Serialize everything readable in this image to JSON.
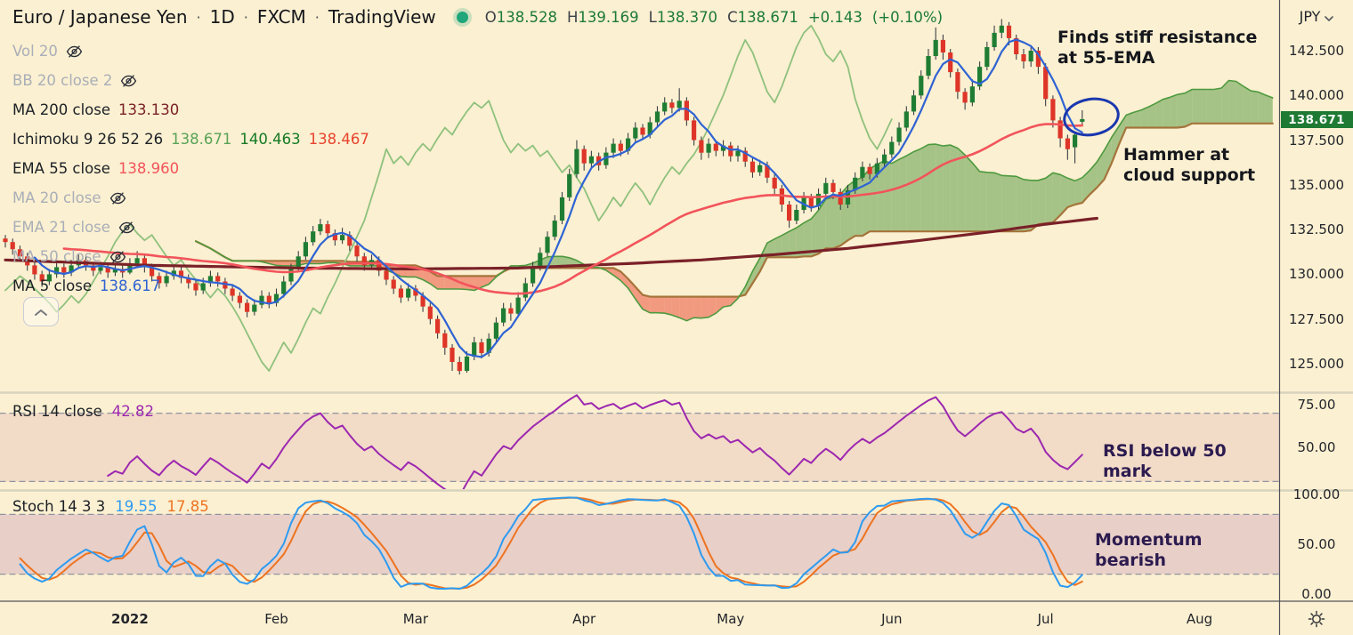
{
  "header": {
    "symbol": "Euro / Japanese Yen",
    "separator": "·",
    "interval": "1D",
    "exchange": "FXCM",
    "platform": "TradingView",
    "ohlc": {
      "o_label": "O",
      "o": "138.528",
      "h_label": "H",
      "h": "139.169",
      "l_label": "L",
      "l": "138.370",
      "c_label": "C",
      "c": "138.671",
      "change": "+0.143",
      "change_pct": "(+0.10%)"
    }
  },
  "legend": {
    "rows": [
      {
        "id": "vol",
        "label": "Vol 20",
        "disabled": true,
        "eye": true
      },
      {
        "id": "bb",
        "label": "BB 20 close 2",
        "disabled": true,
        "eye": true
      },
      {
        "id": "ma200",
        "label": "MA 200 close",
        "values": [
          {
            "text": "133.130",
            "color": "#7A2128"
          }
        ]
      },
      {
        "id": "ichimoku",
        "label": "Ichimoku 9 26 52 26",
        "values": [
          {
            "text": "138.671",
            "color": "#59A357"
          },
          {
            "text": "140.463",
            "color": "#157A24"
          },
          {
            "text": "138.467",
            "color": "#E8432E"
          }
        ]
      },
      {
        "id": "ema55",
        "label": "EMA 55 close",
        "values": [
          {
            "text": "138.960",
            "color": "#F2545B"
          }
        ]
      },
      {
        "id": "ma20",
        "label": "MA 20 close",
        "disabled": true,
        "eye": true
      },
      {
        "id": "ema21",
        "label": "EMA 21 close",
        "disabled": true,
        "eye": true
      },
      {
        "id": "ma50",
        "label": "MA 50 close",
        "disabled": true,
        "eye": true
      },
      {
        "id": "ma5",
        "label": "MA 5 close",
        "values": [
          {
            "text": "138.617",
            "color": "#2F63D4"
          }
        ]
      }
    ]
  },
  "panes": {
    "rsi": {
      "label": "RSI 14 close",
      "value": "42.82"
    },
    "stoch": {
      "label": "Stoch 14 3 3",
      "k_value": "19.55",
      "d_value": "17.85"
    }
  },
  "axis": {
    "currency": "JPY",
    "last_price_label": "138.671"
  },
  "annotations": {
    "resistance": {
      "line1": "Finds stiff resistance",
      "line2": "at 55-EMA"
    },
    "hammer": {
      "line1": "Hammer at",
      "line2": "cloud support"
    },
    "rsi": {
      "line1": "RSI below 50",
      "line2": "mark"
    },
    "momentum": {
      "line1": "Momentum",
      "line2": "bearish"
    }
  },
  "colors": {
    "background": "#FBF0D1",
    "candle_up": "#1F7D33",
    "candle_down": "#DE3528",
    "wick": "#3C3F46",
    "cloud_up": "rgba(96,158,74,0.55)",
    "cloud_down": "rgba(235,84,62,0.55)",
    "senkou_a": "#4E9A3F",
    "senkou_b": "#A5743B",
    "lagging": "#8FC17D",
    "ma5": "#2F63D4",
    "ema55": "#F2545B",
    "ma200": "#7A2128",
    "rsi": "#9C27B0",
    "rsi_band": "rgba(170,40,120,0.10)",
    "stoch_k": "#2E9BF0",
    "stoch_d": "#EE7320",
    "stoch_band": "rgba(150,60,160,0.18)",
    "dashed": "#9094A0",
    "separator": "#D8D2BE",
    "axis_border": "#50505A",
    "badge_bg": "#1E7A33",
    "badge_text": "#FFFFFF",
    "annotation_dark": "#15171C",
    "annotation_purple": "#2C1B4F",
    "drawing_blue": "#1A37AE",
    "status_dot": "#1FA67A"
  },
  "chart_data": {
    "type": "candlestick",
    "title": "Euro / Japanese Yen, 1D, FXCM",
    "legend_note": "daily bars Dec 2021 - Jul 2022 with Ichimoku cloud, MA/EMA overlays, RSI and Stochastic subpanes",
    "price_pane": {
      "ylim": [
        124.2,
        144.7
      ],
      "y_ticks": [
        {
          "value": 142.5,
          "label": "142.500"
        },
        {
          "value": 140.0,
          "label": "140.000"
        },
        {
          "value": 137.5,
          "label": "137.500"
        },
        {
          "value": 135.0,
          "label": "135.000"
        },
        {
          "value": 132.5,
          "label": "132.500"
        },
        {
          "value": 130.0,
          "label": "130.000"
        },
        {
          "value": 127.5,
          "label": "127.500"
        },
        {
          "value": 125.0,
          "label": "125.000"
        }
      ],
      "last_price": 138.671,
      "overlays": {
        "ichimoku_params": [
          9,
          26,
          52,
          26
        ],
        "ma5_period": 5,
        "ema55_period": 55,
        "ma200_period": 200,
        "ma200_waypoints": [
          [
            0,
            130.8
          ],
          [
            20,
            130.5
          ],
          [
            40,
            130.35
          ],
          [
            55,
            130.3
          ],
          [
            70,
            130.35
          ],
          [
            85,
            130.6
          ],
          [
            95,
            130.8
          ],
          [
            105,
            131.1
          ],
          [
            115,
            131.45
          ],
          [
            125,
            131.9
          ],
          [
            135,
            132.4
          ],
          [
            142,
            132.8
          ],
          [
            149,
            133.13
          ]
        ]
      },
      "candles": [
        [
          132.0,
          132.2,
          131.5,
          131.8
        ],
        [
          131.8,
          132.0,
          131.1,
          131.4
        ],
        [
          131.4,
          131.6,
          130.7,
          131.0
        ],
        [
          131.0,
          131.2,
          130.2,
          130.5
        ],
        [
          130.5,
          130.7,
          129.7,
          130.0
        ],
        [
          130.0,
          130.2,
          129.3,
          129.6
        ],
        [
          129.6,
          130.3,
          129.4,
          130.0
        ],
        [
          130.0,
          130.7,
          129.8,
          130.4
        ],
        [
          130.4,
          130.6,
          129.8,
          130.1
        ],
        [
          130.1,
          130.8,
          129.9,
          130.5
        ],
        [
          130.5,
          131.1,
          130.3,
          130.8
        ],
        [
          130.8,
          131.0,
          130.2,
          130.5
        ],
        [
          130.5,
          130.7,
          129.9,
          130.2
        ],
        [
          130.2,
          130.7,
          130.0,
          130.4
        ],
        [
          130.4,
          130.6,
          129.8,
          130.1
        ],
        [
          130.1,
          130.6,
          129.9,
          130.3
        ],
        [
          130.3,
          130.5,
          129.8,
          130.1
        ],
        [
          130.1,
          130.9,
          130.0,
          130.6
        ],
        [
          130.6,
          131.3,
          130.4,
          130.9
        ],
        [
          130.9,
          131.1,
          130.1,
          130.4
        ],
        [
          130.4,
          130.6,
          129.6,
          129.9
        ],
        [
          129.9,
          130.1,
          129.2,
          129.5
        ],
        [
          129.5,
          130.2,
          129.3,
          129.9
        ],
        [
          129.9,
          130.5,
          129.7,
          130.2
        ],
        [
          130.2,
          130.4,
          129.5,
          129.8
        ],
        [
          129.8,
          130.0,
          129.2,
          129.5
        ],
        [
          129.5,
          129.7,
          128.8,
          129.1
        ],
        [
          129.1,
          129.8,
          128.9,
          129.5
        ],
        [
          129.5,
          130.2,
          129.3,
          129.9
        ],
        [
          129.9,
          130.1,
          129.3,
          129.6
        ],
        [
          129.6,
          129.8,
          128.9,
          129.2
        ],
        [
          129.2,
          129.4,
          128.5,
          128.8
        ],
        [
          128.8,
          129.0,
          128.1,
          128.4
        ],
        [
          128.4,
          128.6,
          127.6,
          127.9
        ],
        [
          127.9,
          128.6,
          127.7,
          128.3
        ],
        [
          128.3,
          129.1,
          128.1,
          128.8
        ],
        [
          128.8,
          129.0,
          128.1,
          128.4
        ],
        [
          128.4,
          129.2,
          128.2,
          128.9
        ],
        [
          128.9,
          129.9,
          128.7,
          129.6
        ],
        [
          129.6,
          130.6,
          129.4,
          130.3
        ],
        [
          130.3,
          131.3,
          130.1,
          131.0
        ],
        [
          131.0,
          132.1,
          130.8,
          131.8
        ],
        [
          131.8,
          132.7,
          131.6,
          132.4
        ],
        [
          132.4,
          133.1,
          132.2,
          132.8
        ],
        [
          132.8,
          133.0,
          132.0,
          132.3
        ],
        [
          132.3,
          132.5,
          131.6,
          131.9
        ],
        [
          131.9,
          132.6,
          131.7,
          132.2
        ],
        [
          132.2,
          132.4,
          131.3,
          131.6
        ],
        [
          131.6,
          131.8,
          130.7,
          131.0
        ],
        [
          131.0,
          131.2,
          130.2,
          130.5
        ],
        [
          130.5,
          131.1,
          130.3,
          130.8
        ],
        [
          130.8,
          131.0,
          129.9,
          130.2
        ],
        [
          130.2,
          130.4,
          129.4,
          129.7
        ],
        [
          129.7,
          129.9,
          128.9,
          129.2
        ],
        [
          129.2,
          129.4,
          128.4,
          128.7
        ],
        [
          128.7,
          129.5,
          128.5,
          129.2
        ],
        [
          129.2,
          129.4,
          128.5,
          128.8
        ],
        [
          128.8,
          129.0,
          127.9,
          128.2
        ],
        [
          128.2,
          128.4,
          127.2,
          127.5
        ],
        [
          127.5,
          127.7,
          126.4,
          126.7
        ],
        [
          126.7,
          126.9,
          125.5,
          125.9
        ],
        [
          125.9,
          126.1,
          124.6,
          125.1
        ],
        [
          125.1,
          125.4,
          124.4,
          124.6
        ],
        [
          124.6,
          125.7,
          124.5,
          125.4
        ],
        [
          125.4,
          126.5,
          125.2,
          126.2
        ],
        [
          126.2,
          126.4,
          125.3,
          125.6
        ],
        [
          125.6,
          126.7,
          125.4,
          126.4
        ],
        [
          126.4,
          127.6,
          126.2,
          127.3
        ],
        [
          127.3,
          128.4,
          127.1,
          128.1
        ],
        [
          128.1,
          128.4,
          127.4,
          127.8
        ],
        [
          127.8,
          129.0,
          127.6,
          128.7
        ],
        [
          128.7,
          129.8,
          128.5,
          129.5
        ],
        [
          129.5,
          130.7,
          129.3,
          130.4
        ],
        [
          130.4,
          131.5,
          130.2,
          131.2
        ],
        [
          131.2,
          132.4,
          131.0,
          132.1
        ],
        [
          132.1,
          133.3,
          131.9,
          133.0
        ],
        [
          133.0,
          134.6,
          132.8,
          134.3
        ],
        [
          134.3,
          135.9,
          134.1,
          135.6
        ],
        [
          135.6,
          137.5,
          135.4,
          137.0
        ],
        [
          137.0,
          137.2,
          135.8,
          136.2
        ],
        [
          136.2,
          136.9,
          135.9,
          136.6
        ],
        [
          136.6,
          136.8,
          135.8,
          136.1
        ],
        [
          136.1,
          137.1,
          135.9,
          136.8
        ],
        [
          136.8,
          137.6,
          136.5,
          137.3
        ],
        [
          137.3,
          137.5,
          136.6,
          136.9
        ],
        [
          136.9,
          137.9,
          136.7,
          137.6
        ],
        [
          137.6,
          138.5,
          137.4,
          138.2
        ],
        [
          138.2,
          138.4,
          137.5,
          137.8
        ],
        [
          137.8,
          138.8,
          137.6,
          138.5
        ],
        [
          138.5,
          139.4,
          138.3,
          139.1
        ],
        [
          139.1,
          139.9,
          138.9,
          139.6
        ],
        [
          139.6,
          139.8,
          139.0,
          139.3
        ],
        [
          139.3,
          140.4,
          139.1,
          139.7
        ],
        [
          139.7,
          139.9,
          138.3,
          138.6
        ],
        [
          138.6,
          138.8,
          137.2,
          137.5
        ],
        [
          137.5,
          137.7,
          136.4,
          136.8
        ],
        [
          136.8,
          137.6,
          136.5,
          137.3
        ],
        [
          137.3,
          137.5,
          136.6,
          136.9
        ],
        [
          136.9,
          137.5,
          136.6,
          137.2
        ],
        [
          137.2,
          137.4,
          136.3,
          136.6
        ],
        [
          136.6,
          137.2,
          136.3,
          136.9
        ],
        [
          136.9,
          137.1,
          136.0,
          136.3
        ],
        [
          136.3,
          136.5,
          135.4,
          135.7
        ],
        [
          135.7,
          136.4,
          135.5,
          136.1
        ],
        [
          136.1,
          136.3,
          135.1,
          135.4
        ],
        [
          135.4,
          135.6,
          134.4,
          134.8
        ],
        [
          134.8,
          135.0,
          133.5,
          133.9
        ],
        [
          133.9,
          134.1,
          132.6,
          133.0
        ],
        [
          133.0,
          133.9,
          132.8,
          133.6
        ],
        [
          133.6,
          134.6,
          133.4,
          134.3
        ],
        [
          134.3,
          134.5,
          133.5,
          133.8
        ],
        [
          133.8,
          134.8,
          133.6,
          134.5
        ],
        [
          134.5,
          135.4,
          134.3,
          135.1
        ],
        [
          135.1,
          135.3,
          134.2,
          134.6
        ],
        [
          134.6,
          134.8,
          133.6,
          133.9
        ],
        [
          133.9,
          135.0,
          133.7,
          134.7
        ],
        [
          134.7,
          135.7,
          134.5,
          135.4
        ],
        [
          135.4,
          136.3,
          135.2,
          136.0
        ],
        [
          136.0,
          136.2,
          135.3,
          135.6
        ],
        [
          135.6,
          136.5,
          135.4,
          136.2
        ],
        [
          136.2,
          137.0,
          136.0,
          136.7
        ],
        [
          136.7,
          137.7,
          136.5,
          137.4
        ],
        [
          137.4,
          138.5,
          137.2,
          138.2
        ],
        [
          138.2,
          139.4,
          138.0,
          139.1
        ],
        [
          139.1,
          140.3,
          138.9,
          140.0
        ],
        [
          140.0,
          141.4,
          139.8,
          141.1
        ],
        [
          141.1,
          142.6,
          140.9,
          142.2
        ],
        [
          142.2,
          143.8,
          142.0,
          143.1
        ],
        [
          143.1,
          143.4,
          142.0,
          142.4
        ],
        [
          142.4,
          142.6,
          141.0,
          141.3
        ],
        [
          141.3,
          141.5,
          139.8,
          140.2
        ],
        [
          140.2,
          140.4,
          139.2,
          139.6
        ],
        [
          139.6,
          140.9,
          139.4,
          140.5
        ],
        [
          140.5,
          141.9,
          140.3,
          141.6
        ],
        [
          141.6,
          143.0,
          141.4,
          142.7
        ],
        [
          142.7,
          143.9,
          142.5,
          143.5
        ],
        [
          143.5,
          144.27,
          143.2,
          143.9
        ],
        [
          143.9,
          144.1,
          142.8,
          143.2
        ],
        [
          143.2,
          143.4,
          142.0,
          142.3
        ],
        [
          142.3,
          142.6,
          141.5,
          141.9
        ],
        [
          141.9,
          142.8,
          141.6,
          142.5
        ],
        [
          142.5,
          142.7,
          141.2,
          141.6
        ],
        [
          141.6,
          141.8,
          139.4,
          139.8
        ],
        [
          139.8,
          140.0,
          138.2,
          138.6
        ],
        [
          138.6,
          138.8,
          137.1,
          137.6
        ],
        [
          137.6,
          137.8,
          136.4,
          137.0
        ],
        [
          137.1,
          138.0,
          136.2,
          137.8
        ],
        [
          138.528,
          139.169,
          138.37,
          138.671
        ]
      ]
    },
    "rsi_pane": {
      "params": "14 close",
      "last": 42.82,
      "bands": [
        70,
        30
      ],
      "ylim": [
        0,
        100
      ],
      "y_ticks": [
        {
          "value": 75,
          "label": "75.00"
        },
        {
          "value": 50,
          "label": "50.00"
        }
      ]
    },
    "stoch_pane": {
      "params": "14 3 3",
      "k_last": 19.55,
      "d_last": 17.85,
      "bands": [
        80,
        20
      ],
      "ylim": [
        0,
        100
      ],
      "y_ticks": [
        {
          "value": 100,
          "label": "100.00"
        },
        {
          "value": 50,
          "label": "50.00"
        },
        {
          "value": 0,
          "label": "0.00"
        }
      ]
    },
    "x_ticks": [
      {
        "label": "2022",
        "bar": 17,
        "bold": true
      },
      {
        "label": "Feb",
        "bar": 37
      },
      {
        "label": "Mar",
        "bar": 56
      },
      {
        "label": "Apr",
        "bar": 79
      },
      {
        "label": "May",
        "bar": 99
      },
      {
        "label": "Jun",
        "bar": 121
      },
      {
        "label": "Jul",
        "bar": 142
      },
      {
        "label": "Aug",
        "bar": 163
      }
    ]
  }
}
